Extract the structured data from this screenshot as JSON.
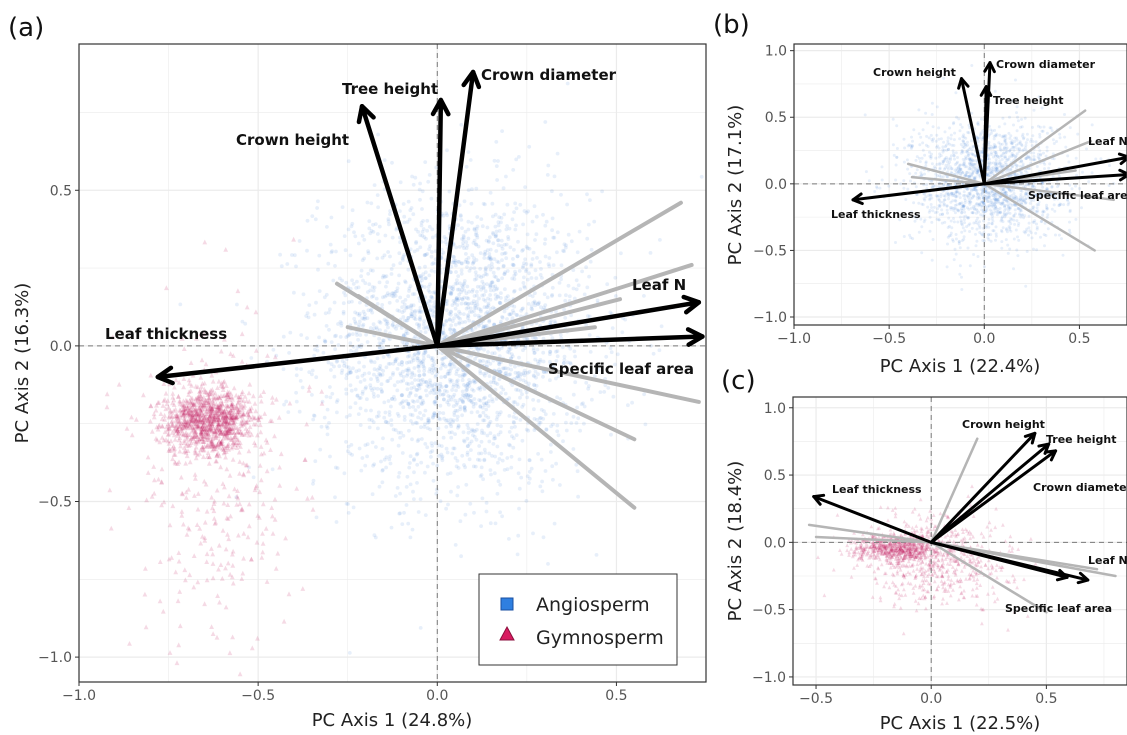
{
  "colors": {
    "angiosperm": "#3a78d8",
    "gymnosperm": "#c2185b",
    "arrow": "#000000",
    "grey_vector": "#b5b5b5",
    "grid": "#ebebeb",
    "zero_line": "#7a7a7a"
  },
  "legend": {
    "position": "bottom-right of panel (a)",
    "items": [
      {
        "label": "Angiosperm",
        "shape": "square",
        "color": "#3a78d8"
      },
      {
        "label": "Gymnosperm",
        "shape": "triangle",
        "color": "#c2185b"
      }
    ]
  },
  "chart_data": [
    {
      "type": "scatter",
      "panel": "(a)",
      "xlabel": "PC Axis 1 (24.8%)",
      "ylabel": "PC Axis 2 (16.3%)",
      "xlim": [
        -1.0,
        0.75
      ],
      "ylim": [
        -1.08,
        0.97
      ],
      "xticks": [
        -1.0,
        -0.5,
        0.0,
        0.5
      ],
      "xtick_labels": [
        "−1.0",
        "−0.5",
        "0.0",
        "0.5"
      ],
      "yticks": [
        -1.0,
        -0.5,
        0.0,
        0.5
      ],
      "ytick_labels": [
        "−1.0",
        "−0.5",
        "0.0",
        "0.5"
      ],
      "grid": true,
      "groups_shown": [
        "Angiosperm",
        "Gymnosperm"
      ],
      "clouds": [
        {
          "group": "Angiosperm",
          "cx": 0.05,
          "cy": 0.02,
          "sx": 0.19,
          "sy": 0.24
        },
        {
          "group": "Gymnosperm",
          "cx": -0.64,
          "cy": -0.24,
          "sx": 0.06,
          "sy": 0.05
        }
      ],
      "vectors": [
        {
          "label": "Crown height",
          "x": -0.21,
          "y": 0.77
        },
        {
          "label": "Tree height",
          "x": 0.01,
          "y": 0.79
        },
        {
          "label": "Crown diameter",
          "x": 0.1,
          "y": 0.88
        },
        {
          "label": "Leaf N",
          "x": 0.73,
          "y": 0.14
        },
        {
          "label": "Specific leaf area",
          "x": 0.74,
          "y": 0.03
        },
        {
          "label": "Leaf thickness",
          "x": -0.78,
          "y": -0.1
        }
      ],
      "grey_vectors": [
        {
          "x": 0.68,
          "y": 0.46
        },
        {
          "x": 0.71,
          "y": 0.26
        },
        {
          "x": 0.51,
          "y": 0.15
        },
        {
          "x": 0.44,
          "y": 0.06
        },
        {
          "x": 0.73,
          "y": -0.18
        },
        {
          "x": 0.55,
          "y": -0.3
        },
        {
          "x": 0.55,
          "y": -0.52
        },
        {
          "x": -0.28,
          "y": 0.2
        },
        {
          "x": -0.25,
          "y": 0.06
        },
        {
          "x": -0.22,
          "y": 0.16
        }
      ]
    },
    {
      "type": "scatter",
      "panel": "(b)",
      "xlabel": "PC Axis 1 (22.4%)",
      "ylabel": "PC Axis 2 (17.1%)",
      "xlim": [
        -1.0,
        0.75
      ],
      "ylim": [
        -1.06,
        1.05
      ],
      "xticks": [
        -1.0,
        -0.5,
        0.0,
        0.5
      ],
      "xtick_labels": [
        "−1.0",
        "−0.5",
        "0.0",
        "0.5"
      ],
      "yticks": [
        -1.0,
        -0.5,
        0.0,
        0.5,
        1.0
      ],
      "ytick_labels": [
        "−1.0",
        "−0.5",
        "0.0",
        "0.5",
        "1.0"
      ],
      "grid": true,
      "groups_shown": [
        "Angiosperm"
      ],
      "clouds": [
        {
          "group": "Angiosperm",
          "cx": 0.02,
          "cy": 0.02,
          "sx": 0.2,
          "sy": 0.23
        }
      ],
      "vectors": [
        {
          "label": "Crown height",
          "x": -0.12,
          "y": 0.79
        },
        {
          "label": "Crown diameter",
          "x": 0.03,
          "y": 0.91
        },
        {
          "label": "Tree height",
          "x": 0.01,
          "y": 0.73
        },
        {
          "label": "Leaf N",
          "x": 0.76,
          "y": 0.2
        },
        {
          "label": "Specific leaf area",
          "x": 0.76,
          "y": 0.07
        },
        {
          "label": "Leaf thickness",
          "x": -0.69,
          "y": -0.12
        }
      ],
      "grey_vectors": [
        {
          "x": 0.53,
          "y": 0.55
        },
        {
          "x": 0.56,
          "y": 0.32
        },
        {
          "x": 0.68,
          "y": -0.12
        },
        {
          "x": 0.58,
          "y": -0.5
        },
        {
          "x": -0.4,
          "y": 0.15
        },
        {
          "x": -0.38,
          "y": 0.05
        },
        {
          "x": 0.48,
          "y": 0.1
        }
      ]
    },
    {
      "type": "scatter",
      "panel": "(c)",
      "xlabel": "PC Axis 1 (22.5%)",
      "ylabel": "PC Axis 2 (18.4%)",
      "xlim": [
        -0.6,
        0.85
      ],
      "ylim": [
        -1.06,
        1.08
      ],
      "xticks": [
        -0.5,
        0.0,
        0.5
      ],
      "xtick_labels": [
        "−0.5",
        "0.0",
        "0.5"
      ],
      "yticks": [
        -1.0,
        -0.5,
        0.0,
        0.5,
        1.0
      ],
      "ytick_labels": [
        "−1.0",
        "−0.5",
        "0.0",
        "0.5",
        "1.0"
      ],
      "grid": true,
      "groups_shown": [
        "Gymnosperm"
      ],
      "clouds": [
        {
          "group": "Gymnosperm",
          "cx": -0.15,
          "cy": -0.04,
          "sx": 0.09,
          "sy": 0.05
        },
        {
          "group": "Gymnosperm",
          "cx": 0.03,
          "cy": -0.12,
          "sx": 0.16,
          "sy": 0.17
        }
      ],
      "vectors": [
        {
          "label": "Crown height",
          "x": 0.45,
          "y": 0.81
        },
        {
          "label": "Tree height",
          "x": 0.51,
          "y": 0.73
        },
        {
          "label": "Crown diameter",
          "x": 0.54,
          "y": 0.68
        },
        {
          "label": "Leaf N",
          "x": 0.59,
          "y": -0.26
        },
        {
          "label": "Specific leaf area",
          "x": 0.68,
          "y": -0.28
        },
        {
          "label": "Leaf thickness",
          "x": -0.51,
          "y": 0.34
        }
      ],
      "grey_vectors": [
        {
          "x": 0.2,
          "y": 0.77
        },
        {
          "x": 0.8,
          "y": -0.25
        },
        {
          "x": 0.72,
          "y": -0.2
        },
        {
          "x": 0.5,
          "y": -0.52
        },
        {
          "x": -0.53,
          "y": 0.13
        },
        {
          "x": -0.5,
          "y": 0.04
        }
      ]
    }
  ]
}
